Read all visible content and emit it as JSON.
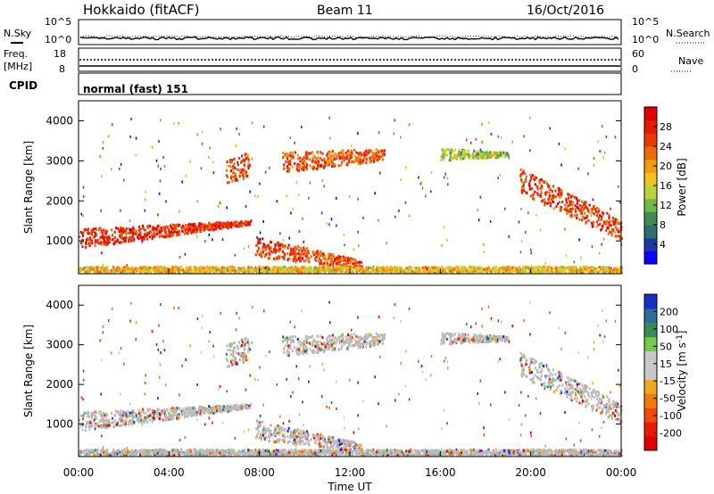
{
  "header": {
    "title": "Hokkaido (fitACF)",
    "beam": "Beam 11",
    "date": "16/Oct/2016"
  },
  "left_labels": {
    "nsky": "N.Sky",
    "freq": "Freq.",
    "freq_unit": "[MHz]",
    "cpid": "CPID"
  },
  "right_labels": {
    "nsearch": "N.Search",
    "nave": "Nave"
  },
  "noise_axis": {
    "left_ticks": [
      "10^5",
      "10^0"
    ],
    "right_ticks": [
      "10^5",
      "10^0"
    ]
  },
  "freq_axis": {
    "left_ticks": [
      "18",
      "8"
    ],
    "right_ticks": [
      "60",
      "0"
    ]
  },
  "cpid_text": "normal (fast) 151",
  "colors": {
    "frame": "#000000",
    "power_colorbar": [
      "#0a00ff",
      "#1a3aa0",
      "#2f6e6e",
      "#3f8a55",
      "#6fb84a",
      "#b7d23c",
      "#f3c21e",
      "#f39a12",
      "#ef6a0a",
      "#ea3a06",
      "#e81a03",
      "#e00000"
    ],
    "velocity_colorbar": [
      "#1a2fc8",
      "#2e6e96",
      "#3c8a55",
      "#75c850",
      "#c8c8c8",
      "#c8c8c8",
      "#f0a81e",
      "#f07a0a",
      "#ee4a05",
      "#e81a02",
      "#e00000"
    ],
    "ground_scatter": "#b8b8b8"
  },
  "chart_data": [
    {
      "type": "heatmap",
      "name": "Power",
      "ylabel": "Slant Range [km]",
      "yticks": [
        1000,
        2000,
        3000,
        4000
      ],
      "ylim": [
        180,
        4500
      ],
      "xlim": [
        0,
        24
      ],
      "colorbar_label": "Power [dB]",
      "colorbar_ticks": [
        4,
        8,
        12,
        16,
        20,
        24,
        28
      ],
      "colorbar_range": [
        0,
        32
      ],
      "bands": [
        {
          "x": [
            0,
            7.6
          ],
          "y_low": [
            800,
            1400
          ],
          "y_high": [
            1300,
            1500
          ],
          "level": 27
        },
        {
          "x": [
            6.5,
            7.5
          ],
          "y_low": [
            2400,
            2600
          ],
          "y_high": [
            3000,
            3200
          ],
          "level": 25
        },
        {
          "x": [
            7.8,
            12.5
          ],
          "y_low": [
            600,
            300
          ],
          "y_high": [
            1100,
            500
          ],
          "level": 25
        },
        {
          "x": [
            9,
            13.5
          ],
          "y_low": [
            2700,
            3000
          ],
          "y_high": [
            3200,
            3300
          ],
          "level": 24
        },
        {
          "x": [
            16,
            19
          ],
          "y_low": [
            3000,
            3100
          ],
          "y_high": [
            3300,
            3200
          ],
          "level": 14
        },
        {
          "x": [
            19.5,
            24
          ],
          "y_low": [
            2200,
            1000
          ],
          "y_high": [
            2800,
            1500
          ],
          "level": 26
        },
        {
          "x": [
            0,
            24
          ],
          "y_low": [
            200,
            200
          ],
          "y_high": [
            350,
            350
          ],
          "level": 18
        }
      ]
    },
    {
      "type": "heatmap",
      "name": "Velocity",
      "ylabel": "Slant Range [km]",
      "xlabel": "Time UT",
      "yticks": [
        1000,
        2000,
        3000,
        4000
      ],
      "ylim": [
        180,
        4500
      ],
      "xlim": [
        0,
        24
      ],
      "xticks": [
        "00:00",
        "04:00",
        "08:00",
        "12:00",
        "16:00",
        "20:00",
        "00:00"
      ],
      "colorbar_label": "Velocity [m s^-1]",
      "colorbar_ticks": [
        200,
        100,
        50,
        15,
        -15,
        -50,
        -100,
        -200
      ],
      "colorbar_range": [
        -250,
        250
      ]
    }
  ]
}
